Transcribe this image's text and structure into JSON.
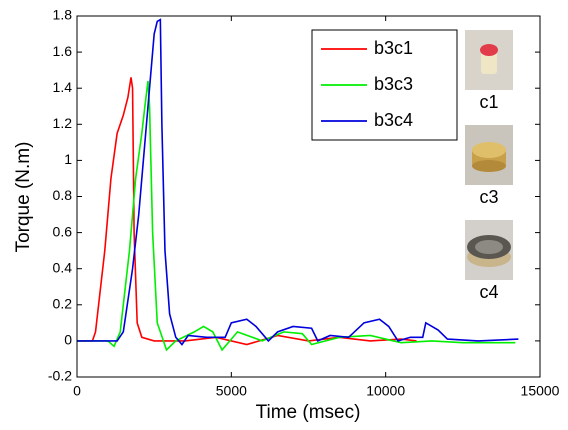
{
  "chart_data": {
    "type": "line",
    "x_label": "Time (msec)",
    "y_label": "Torque (N.m)",
    "xlim": [
      0,
      15000
    ],
    "xticks": [
      0,
      5000,
      10000,
      15000
    ],
    "ylim": [
      -0.2,
      1.8
    ],
    "yticks": [
      -0.2,
      0,
      0.2,
      0.4,
      0.6,
      0.8,
      1,
      1.2,
      1.4,
      1.6,
      1.8
    ],
    "grid": false,
    "legend": "upper right",
    "image_labels": [
      "c1",
      "c3",
      "c4"
    ],
    "series": [
      {
        "name": "b3c1",
        "color": "#ff0000",
        "x": [
          0,
          500,
          600,
          900,
          1100,
          1300,
          1500,
          1650,
          1750,
          1800,
          1850,
          1950,
          2100,
          2500,
          3500,
          4500,
          5500,
          6500,
          7500,
          8500,
          9500,
          10500,
          11000
        ],
        "values": [
          0,
          0,
          0.05,
          0.5,
          0.9,
          1.15,
          1.25,
          1.35,
          1.46,
          1.4,
          0.6,
          0.1,
          0.02,
          0,
          0,
          0.02,
          -0.02,
          0.03,
          0,
          0.02,
          0,
          0.01,
          0
        ]
      },
      {
        "name": "b3c3",
        "color": "#00ee00",
        "x": [
          0,
          1000,
          1200,
          1400,
          1700,
          1900,
          2100,
          2200,
          2300,
          2350,
          2450,
          2600,
          2800,
          2900,
          3200,
          3800,
          4100,
          4400,
          4700,
          5200,
          6000,
          6700,
          7300,
          7600,
          8500,
          9500,
          10500,
          11500,
          12500,
          14200
        ],
        "values": [
          0,
          0,
          -0.03,
          0.05,
          0.5,
          0.9,
          1.15,
          1.3,
          1.44,
          1.3,
          0.6,
          0.1,
          0,
          -0.05,
          0,
          0.05,
          0.08,
          0.05,
          -0.05,
          0.05,
          0,
          0.05,
          0.04,
          -0.02,
          0.02,
          0.03,
          -0.01,
          0,
          -0.01,
          -0.01
        ]
      },
      {
        "name": "b3c4",
        "color": "#0000dd",
        "x": [
          0,
          1300,
          1500,
          1800,
          2000,
          2200,
          2350,
          2500,
          2600,
          2700,
          2750,
          2850,
          3000,
          3200,
          3400,
          3600,
          4200,
          4800,
          5000,
          5500,
          5800,
          6200,
          6500,
          7000,
          7600,
          7800,
          8200,
          8800,
          9300,
          9800,
          10100,
          10400,
          10800,
          11200,
          11300,
          11700,
          12000,
          13000,
          14300
        ],
        "values": [
          0,
          0,
          0.05,
          0.4,
          0.7,
          1.1,
          1.4,
          1.7,
          1.77,
          1.78,
          1.2,
          0.5,
          0.15,
          0.02,
          -0.02,
          0.03,
          0.02,
          0.02,
          0.1,
          0.12,
          0.08,
          0,
          0.05,
          0.08,
          0.07,
          0,
          0.03,
          0.02,
          0.1,
          0.12,
          0.08,
          0,
          0.02,
          0.02,
          0.1,
          0.06,
          0.01,
          0,
          0.01
        ]
      }
    ]
  }
}
